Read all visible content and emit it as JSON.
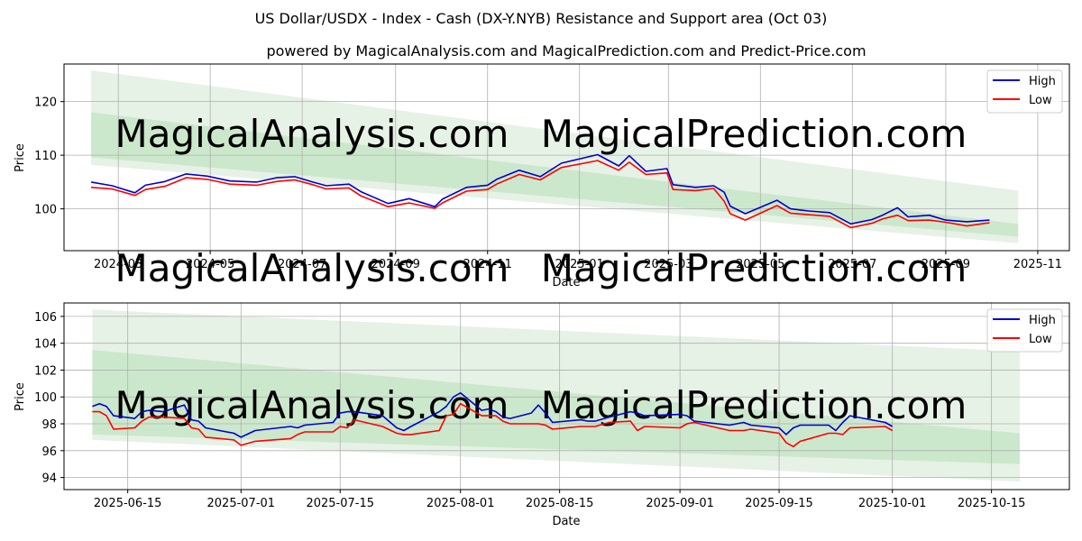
{
  "figure": {
    "title": "US Dollar/USDX - Index - Cash (DX-Y.NYB) Resistance and Support area (Oct 03)",
    "subtitle": "powered by MagicalAnalysis.com and MagicalPrediction.com and Predict-Price.com",
    "watermark_left": "MagicalAnalysis.com",
    "watermark_right": "MagicalPrediction.com"
  },
  "colors": {
    "high": "#0000cc",
    "low": "#ff0000",
    "band_outer": "#e6f2e6",
    "band_inner": "#cce8cc",
    "grid": "#b0b0b0",
    "watermark": "#e8e8e8"
  },
  "chart_data": [
    {
      "type": "line",
      "name": "long-term",
      "xlabel": "Date",
      "ylabel": "Price",
      "xlim": [
        "2024-01-25",
        "2025-11-22"
      ],
      "ylim": [
        92.2,
        127.0
      ],
      "grid": true,
      "legend_position": "top-right",
      "x_ticks": [
        "2024-03",
        "2024-05",
        "2024-07",
        "2024-09",
        "2024-11",
        "2025-01",
        "2025-03",
        "2025-05",
        "2025-07",
        "2025-09",
        "2025-11"
      ],
      "x_tick_dates": [
        "2024-03-01",
        "2024-05-01",
        "2024-07-01",
        "2024-09-01",
        "2024-11-01",
        "2025-01-01",
        "2025-03-01",
        "2025-05-01",
        "2025-07-01",
        "2025-09-01",
        "2025-11-01"
      ],
      "y_ticks": [
        "100",
        "110",
        "120"
      ],
      "y_tick_values": [
        100,
        110,
        120
      ],
      "bands": [
        {
          "name": "outer",
          "start_date": "2024-02-12",
          "end_date": "2025-10-19",
          "start": [
            108.2,
            125.8
          ],
          "end": [
            93.6,
            103.4
          ]
        },
        {
          "name": "inner",
          "start_date": "2024-02-12",
          "end_date": "2025-10-19",
          "start": [
            109.6,
            118.0
          ],
          "end": [
            94.8,
            97.2
          ]
        }
      ],
      "series": [
        {
          "name": "High",
          "dates": [
            "2024-02-12",
            "2024-02-26",
            "2024-03-12",
            "2024-03-19",
            "2024-04-01",
            "2024-04-15",
            "2024-04-29",
            "2024-05-14",
            "2024-06-01",
            "2024-06-14",
            "2024-06-26",
            "2024-07-08",
            "2024-07-17",
            "2024-08-01",
            "2024-08-09",
            "2024-08-27",
            "2024-09-10",
            "2024-09-27",
            "2024-10-02",
            "2024-10-18",
            "2024-11-01",
            "2024-11-07",
            "2024-11-22",
            "2024-12-06",
            "2024-12-20",
            "2025-01-13",
            "2025-01-27",
            "2025-02-03",
            "2025-02-14",
            "2025-02-28",
            "2025-03-04",
            "2025-03-19",
            "2025-03-31",
            "2025-04-07",
            "2025-04-11",
            "2025-04-21",
            "2025-05-12",
            "2025-05-21",
            "2025-06-02",
            "2025-06-16",
            "2025-06-30",
            "2025-07-14",
            "2025-07-21",
            "2025-07-31",
            "2025-08-07",
            "2025-08-21",
            "2025-09-01",
            "2025-09-15",
            "2025-09-30"
          ],
          "values": [
            105.0,
            104.3,
            103.0,
            104.4,
            105.1,
            106.5,
            106.1,
            105.2,
            105.0,
            105.8,
            106.0,
            105.0,
            104.3,
            104.6,
            103.2,
            101.0,
            101.9,
            100.4,
            101.8,
            104.0,
            104.4,
            105.5,
            107.2,
            106.0,
            108.5,
            110.1,
            108.0,
            109.9,
            107.0,
            107.5,
            104.5,
            104.0,
            104.3,
            103.1,
            100.5,
            99.1,
            101.6,
            100.0,
            99.6,
            99.3,
            97.2,
            98.0,
            98.8,
            100.2,
            98.5,
            98.8,
            97.9,
            97.6,
            97.9
          ]
        },
        {
          "name": "Low",
          "dates": [
            "2024-02-12",
            "2024-02-26",
            "2024-03-12",
            "2024-03-19",
            "2024-04-01",
            "2024-04-15",
            "2024-04-29",
            "2024-05-14",
            "2024-06-01",
            "2024-06-14",
            "2024-06-26",
            "2024-07-08",
            "2024-07-17",
            "2024-08-01",
            "2024-08-09",
            "2024-08-27",
            "2024-09-10",
            "2024-09-27",
            "2024-10-02",
            "2024-10-18",
            "2024-11-01",
            "2024-11-07",
            "2024-11-22",
            "2024-12-06",
            "2024-12-20",
            "2025-01-13",
            "2025-01-27",
            "2025-02-03",
            "2025-02-14",
            "2025-02-28",
            "2025-03-04",
            "2025-03-19",
            "2025-03-31",
            "2025-04-07",
            "2025-04-11",
            "2025-04-21",
            "2025-05-12",
            "2025-05-21",
            "2025-06-02",
            "2025-06-16",
            "2025-06-30",
            "2025-07-14",
            "2025-07-21",
            "2025-07-31",
            "2025-08-07",
            "2025-08-21",
            "2025-09-01",
            "2025-09-15",
            "2025-09-30"
          ],
          "values": [
            104.0,
            103.7,
            102.5,
            103.6,
            104.2,
            105.8,
            105.5,
            104.6,
            104.4,
            105.1,
            105.4,
            104.5,
            103.7,
            103.9,
            102.4,
            100.4,
            101.1,
            100.1,
            101.1,
            103.3,
            103.6,
            104.6,
            106.4,
            105.4,
            107.7,
            109.0,
            107.2,
            108.7,
            106.4,
            106.7,
            103.6,
            103.4,
            103.8,
            101.4,
            99.1,
            97.9,
            100.6,
            99.2,
            98.9,
            98.6,
            96.5,
            97.3,
            98.1,
            98.8,
            97.8,
            97.9,
            97.5,
            96.8,
            97.4
          ]
        }
      ]
    },
    {
      "type": "line",
      "name": "short-term",
      "xlabel": "Date",
      "ylabel": "Price",
      "xlim": [
        "2025-06-06",
        "2025-10-26"
      ],
      "ylim": [
        93.1,
        107.0
      ],
      "grid": true,
      "legend_position": "top-right",
      "x_ticks": [
        "2025-06-15",
        "2025-07-01",
        "2025-07-15",
        "2025-08-01",
        "2025-08-15",
        "2025-09-01",
        "2025-09-15",
        "2025-10-01",
        "2025-10-15"
      ],
      "x_tick_dates": [
        "2025-06-15",
        "2025-07-01",
        "2025-07-15",
        "2025-08-01",
        "2025-08-15",
        "2025-09-01",
        "2025-09-15",
        "2025-10-01",
        "2025-10-15"
      ],
      "y_ticks": [
        "94",
        "96",
        "98",
        "100",
        "102",
        "104",
        "106"
      ],
      "y_tick_values": [
        94,
        96,
        98,
        100,
        102,
        104,
        106
      ],
      "bands": [
        {
          "name": "outer",
          "start_date": "2025-06-10",
          "end_date": "2025-10-19",
          "start": [
            96.8,
            106.5
          ],
          "end": [
            93.7,
            103.4
          ]
        },
        {
          "name": "inner",
          "start_date": "2025-06-10",
          "end_date": "2025-10-19",
          "start": [
            97.2,
            103.5
          ],
          "end": [
            95.0,
            97.3
          ]
        }
      ],
      "series": [
        {
          "name": "High",
          "dates": [
            "2025-06-10",
            "2025-06-11",
            "2025-06-12",
            "2025-06-13",
            "2025-06-16",
            "2025-06-17",
            "2025-06-18",
            "2025-06-20",
            "2025-06-23",
            "2025-06-24",
            "2025-06-25",
            "2025-06-26",
            "2025-06-30",
            "2025-07-01",
            "2025-07-03",
            "2025-07-08",
            "2025-07-09",
            "2025-07-10",
            "2025-07-14",
            "2025-07-15",
            "2025-07-16",
            "2025-07-17",
            "2025-07-21",
            "2025-07-23",
            "2025-07-24",
            "2025-07-25",
            "2025-07-29",
            "2025-07-30",
            "2025-07-31",
            "2025-08-01",
            "2025-08-04",
            "2025-08-05",
            "2025-08-06",
            "2025-08-07",
            "2025-08-08",
            "2025-08-11",
            "2025-08-12",
            "2025-08-13",
            "2025-08-14",
            "2025-08-18",
            "2025-08-19",
            "2025-08-20",
            "2025-08-22",
            "2025-08-25",
            "2025-08-26",
            "2025-08-27",
            "2025-09-01",
            "2025-09-02",
            "2025-09-03",
            "2025-09-08",
            "2025-09-10",
            "2025-09-11",
            "2025-09-15",
            "2025-09-16",
            "2025-09-17",
            "2025-09-18",
            "2025-09-22",
            "2025-09-23",
            "2025-09-24",
            "2025-09-25",
            "2025-09-30",
            "2025-10-01"
          ],
          "values": [
            99.3,
            99.5,
            99.3,
            98.6,
            98.4,
            98.9,
            99.0,
            98.9,
            99.4,
            98.3,
            98.2,
            97.7,
            97.3,
            97.0,
            97.5,
            97.8,
            97.7,
            97.9,
            98.1,
            98.8,
            98.9,
            98.9,
            98.6,
            97.7,
            97.5,
            97.8,
            98.9,
            99.3,
            100.0,
            100.3,
            99.0,
            99.1,
            98.9,
            98.5,
            98.4,
            98.8,
            99.4,
            98.8,
            98.1,
            98.3,
            98.2,
            98.2,
            98.5,
            98.9,
            98.8,
            98.6,
            98.7,
            98.6,
            98.2,
            97.9,
            98.1,
            97.9,
            97.7,
            97.2,
            97.7,
            97.9,
            97.9,
            97.5,
            98.1,
            98.6,
            98.1,
            97.8
          ]
        },
        {
          "name": "Low",
          "dates": [
            "2025-06-10",
            "2025-06-11",
            "2025-06-12",
            "2025-06-13",
            "2025-06-16",
            "2025-06-17",
            "2025-06-18",
            "2025-06-20",
            "2025-06-23",
            "2025-06-24",
            "2025-06-25",
            "2025-06-26",
            "2025-06-30",
            "2025-07-01",
            "2025-07-03",
            "2025-07-08",
            "2025-07-09",
            "2025-07-10",
            "2025-07-14",
            "2025-07-15",
            "2025-07-16",
            "2025-07-17",
            "2025-07-21",
            "2025-07-23",
            "2025-07-24",
            "2025-07-25",
            "2025-07-29",
            "2025-07-30",
            "2025-07-31",
            "2025-08-01",
            "2025-08-04",
            "2025-08-05",
            "2025-08-06",
            "2025-08-07",
            "2025-08-08",
            "2025-08-11",
            "2025-08-12",
            "2025-08-13",
            "2025-08-14",
            "2025-08-18",
            "2025-08-19",
            "2025-08-20",
            "2025-08-22",
            "2025-08-25",
            "2025-08-26",
            "2025-08-27",
            "2025-09-01",
            "2025-09-02",
            "2025-09-03",
            "2025-09-08",
            "2025-09-10",
            "2025-09-11",
            "2025-09-15",
            "2025-09-16",
            "2025-09-17",
            "2025-09-18",
            "2025-09-22",
            "2025-09-23",
            "2025-09-24",
            "2025-09-25",
            "2025-09-30",
            "2025-10-01"
          ],
          "values": [
            98.9,
            98.9,
            98.6,
            97.6,
            97.7,
            98.2,
            98.5,
            98.5,
            98.4,
            97.7,
            97.6,
            97.0,
            96.8,
            96.4,
            96.7,
            96.9,
            97.2,
            97.4,
            97.4,
            97.8,
            97.7,
            98.3,
            97.8,
            97.3,
            97.2,
            97.2,
            97.5,
            98.6,
            98.7,
            99.5,
            98.6,
            98.6,
            98.6,
            98.2,
            98.0,
            98.0,
            98.0,
            97.9,
            97.6,
            97.8,
            97.8,
            97.8,
            98.1,
            98.2,
            97.5,
            97.8,
            97.7,
            98.0,
            98.1,
            97.5,
            97.5,
            97.6,
            97.3,
            96.6,
            96.3,
            96.7,
            97.3,
            97.3,
            97.2,
            97.7,
            97.8,
            97.5
          ]
        }
      ]
    }
  ]
}
